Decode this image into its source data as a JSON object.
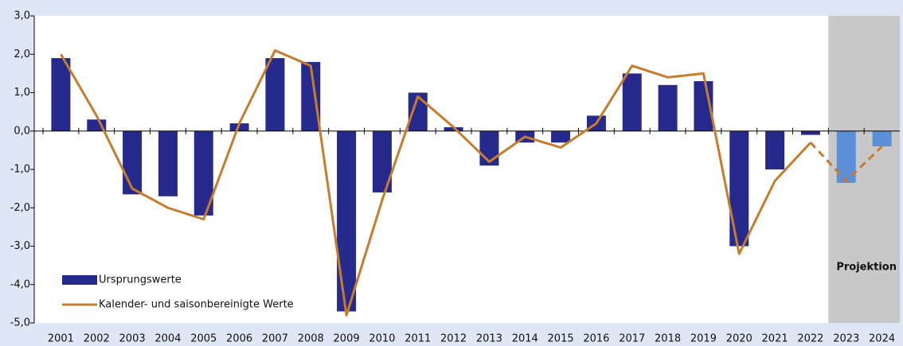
{
  "chart_data": {
    "type": "bar_line",
    "categories": [
      "2001",
      "2002",
      "2003",
      "2004",
      "2005",
      "2006",
      "2007",
      "2008",
      "2009",
      "2010",
      "2011",
      "2012",
      "2013",
      "2014",
      "2015",
      "2016",
      "2017",
      "2018",
      "2019",
      "2020",
      "2021",
      "2022",
      "2023",
      "2024"
    ],
    "series": [
      {
        "name": "Ursprungswerte",
        "kind": "bar",
        "color": "#262a8c",
        "values": [
          1.9,
          0.3,
          -1.65,
          -1.7,
          -2.2,
          0.2,
          1.9,
          1.8,
          -4.7,
          -1.6,
          1.0,
          0.1,
          -0.9,
          -0.3,
          -0.3,
          0.4,
          1.5,
          1.2,
          1.3,
          -3.0,
          -1.0,
          -0.1,
          -1.35,
          -0.4
        ]
      },
      {
        "name": "Kalender- und saisonbereinigte Werte",
        "kind": "line",
        "color": "#c77c2c",
        "values": [
          2.0,
          0.4,
          -1.5,
          -2.0,
          -2.3,
          0.2,
          2.1,
          1.7,
          -4.8,
          -1.8,
          0.9,
          0.1,
          -0.8,
          -0.15,
          -0.43,
          0.2,
          1.7,
          1.4,
          1.5,
          -3.2,
          -1.3,
          -0.3,
          -1.3,
          -0.4
        ]
      }
    ],
    "projection": {
      "label": "Projektion",
      "start": "2023",
      "bar_color": "#5b8fd8",
      "shade": "#c8c8c8"
    },
    "ylim": [
      -5,
      3
    ],
    "yticks": [
      {
        "value": -5,
        "label": "-5,0"
      },
      {
        "value": -4,
        "label": "-4,0"
      },
      {
        "value": -3,
        "label": "-3,0"
      },
      {
        "value": -2,
        "label": "-2,0"
      },
      {
        "value": -1,
        "label": "-1,0"
      },
      {
        "value": 0,
        "label": "0,0"
      },
      {
        "value": 1,
        "label": "1,0"
      },
      {
        "value": 2,
        "label": "2,0"
      },
      {
        "value": 3,
        "label": "3,0"
      }
    ]
  }
}
